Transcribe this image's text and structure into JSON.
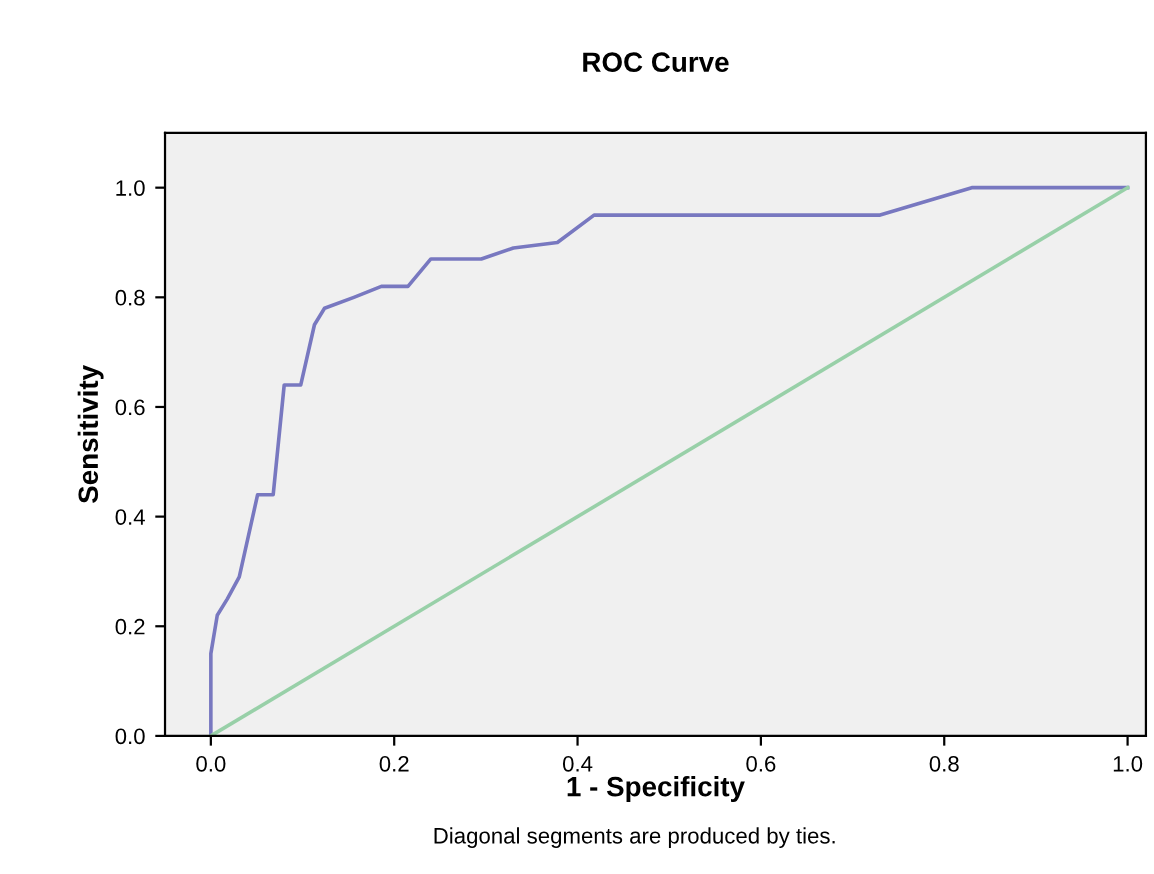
{
  "chart_data": {
    "type": "line",
    "title": "ROC Curve",
    "xlabel": "1 - Specificity",
    "ylabel": "Sensitivity",
    "annotations": [
      "Diagonal segments are produced by ties."
    ],
    "series": [
      {
        "color": "#7878c0",
        "x": [
          0,
          0,
          0.007,
          0.018,
          0.031,
          0.051,
          0.068,
          0.08,
          0.098,
          0.113,
          0.124,
          0.156,
          0.186,
          0.215,
          0.24,
          0.295,
          0.33,
          0.378,
          0.418,
          0.73,
          0.83,
          1.0
        ],
        "values": [
          0,
          0.15,
          0.22,
          0.25,
          0.29,
          0.44,
          0.44,
          0.64,
          0.64,
          0.75,
          0.78,
          0.8,
          0.82,
          0.82,
          0.87,
          0.87,
          0.89,
          0.9,
          0.95,
          0.95,
          1.0,
          1.0
        ]
      },
      {
        "color": "#98d0a8",
        "x": [
          0,
          1.0
        ],
        "values": [
          0,
          1.0
        ]
      }
    ],
    "xlim": [
      -0.05,
      1.02
    ],
    "ylim": [
      0,
      1.1
    ],
    "xticks": [
      {
        "value": 0,
        "label": "0.0"
      },
      0.2,
      0.4,
      0.6,
      0.8,
      {
        "value": 1,
        "label": "1.0"
      }
    ],
    "yticks": [
      {
        "value": 0,
        "label": "0.0"
      },
      0.2,
      0.4,
      0.6,
      0.8,
      {
        "value": 1,
        "label": "1.0"
      }
    ],
    "grid": false
  }
}
